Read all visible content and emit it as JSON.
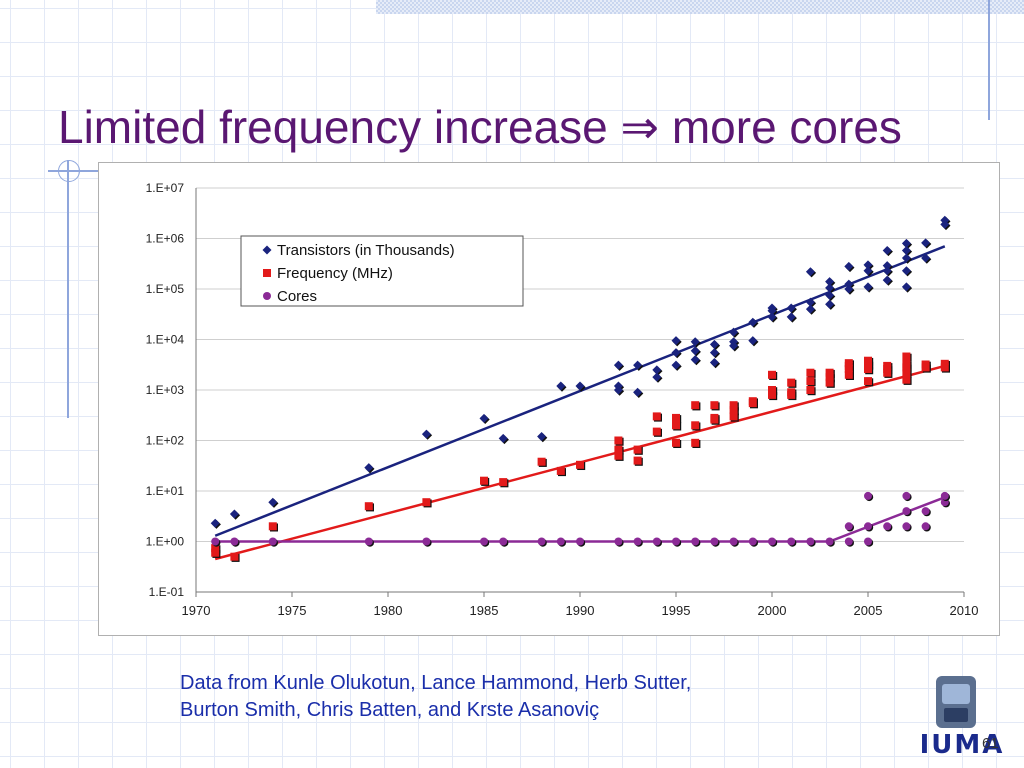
{
  "slide": {
    "title_text": "Limited frequency increase",
    "title_arrow": "⇒",
    "title_tail": "more cores",
    "credit_line1": "Data from Kunle Olukotun, Lance Hammond, Herb Sutter,",
    "credit_line2": "Burton Smith, Chris Batten, and Krste Asanoviç",
    "page_number": "61",
    "logo_text": "IUMA"
  },
  "colors": {
    "title": "#5a1772",
    "transistors": "#1a237e",
    "frequency": "#e21a1a",
    "cores": "#8b2a96",
    "credit": "#1a2eaa"
  },
  "chart_data": {
    "type": "scatter",
    "title": "",
    "xlabel": "",
    "ylabel": "",
    "y_scale": "log",
    "xlim": [
      1970,
      2010
    ],
    "ylim": [
      0.1,
      10000000
    ],
    "x_ticks": [
      "1970",
      "1975",
      "1980",
      "1985",
      "1990",
      "1995",
      "2000",
      "2005",
      "2010"
    ],
    "x_tick_values": [
      1970,
      1975,
      1980,
      1985,
      1990,
      1995,
      2000,
      2005,
      2010
    ],
    "y_ticks": [
      "1.E+07",
      "1.E+06",
      "1.E+05",
      "1.E+04",
      "1.E+03",
      "1.E+02",
      "1.E+01",
      "1.E+00",
      "1.E-01"
    ],
    "y_tick_values": [
      10000000,
      1000000,
      100000,
      10000,
      1000,
      100,
      10,
      1,
      0.1
    ],
    "grid": "horizontal",
    "legend_position": "top-left",
    "series": [
      {
        "name": "Transistors (in Thousands)",
        "marker": "diamond",
        "points": [
          [
            1971,
            2.3
          ],
          [
            1972,
            3.5
          ],
          [
            1974,
            6
          ],
          [
            1979,
            29
          ],
          [
            1982,
            134
          ],
          [
            1985,
            275
          ],
          [
            1986,
            110
          ],
          [
            1988,
            120
          ],
          [
            1989,
            1200
          ],
          [
            1990,
            1200
          ],
          [
            1992,
            3100
          ],
          [
            1992,
            1200
          ],
          [
            1992,
            1000
          ],
          [
            1993,
            3100
          ],
          [
            1993,
            900
          ],
          [
            1994,
            2500
          ],
          [
            1994,
            1800
          ],
          [
            1995,
            9500
          ],
          [
            1995,
            5500
          ],
          [
            1995,
            3100
          ],
          [
            1996,
            9000
          ],
          [
            1996,
            6000
          ],
          [
            1996,
            4000
          ],
          [
            1997,
            8000
          ],
          [
            1997,
            5500
          ],
          [
            1997,
            3500
          ],
          [
            1998,
            14000
          ],
          [
            1998,
            9000
          ],
          [
            1998,
            7500
          ],
          [
            1999,
            22000
          ],
          [
            1999,
            9500
          ],
          [
            2000,
            42000
          ],
          [
            2000,
            37000
          ],
          [
            2000,
            28000
          ],
          [
            2001,
            42000
          ],
          [
            2001,
            28000
          ],
          [
            2002,
            220000
          ],
          [
            2002,
            55000
          ],
          [
            2002,
            40000
          ],
          [
            2003,
            140000
          ],
          [
            2003,
            105000
          ],
          [
            2003,
            75000
          ],
          [
            2003,
            50000
          ],
          [
            2004,
            280000
          ],
          [
            2004,
            125000
          ],
          [
            2004,
            100000
          ],
          [
            2005,
            300000
          ],
          [
            2005,
            230000
          ],
          [
            2005,
            110000
          ],
          [
            2006,
            580000
          ],
          [
            2006,
            290000
          ],
          [
            2006,
            230000
          ],
          [
            2006,
            150000
          ],
          [
            2007,
            800000
          ],
          [
            2007,
            580000
          ],
          [
            2007,
            410000
          ],
          [
            2007,
            230000
          ],
          [
            2007,
            110000
          ],
          [
            2008,
            820000
          ],
          [
            2008,
            410000
          ],
          [
            2009,
            2300000
          ],
          [
            2009,
            1900000
          ]
        ],
        "trend": [
          [
            1971,
            1.3
          ],
          [
            2009,
            700000
          ]
        ]
      },
      {
        "name": "Frequency (MHz)",
        "marker": "square",
        "points": [
          [
            1971,
            0.74
          ],
          [
            1971,
            0.6
          ],
          [
            1972,
            0.5
          ],
          [
            1974,
            2
          ],
          [
            1979,
            5
          ],
          [
            1982,
            6
          ],
          [
            1985,
            16
          ],
          [
            1986,
            15
          ],
          [
            1988,
            38
          ],
          [
            1989,
            25
          ],
          [
            1990,
            33
          ],
          [
            1992,
            100
          ],
          [
            1992,
            66
          ],
          [
            1992,
            50
          ],
          [
            1993,
            66
          ],
          [
            1993,
            40
          ],
          [
            1994,
            300
          ],
          [
            1994,
            150
          ],
          [
            1995,
            280
          ],
          [
            1995,
            200
          ],
          [
            1995,
            90
          ],
          [
            1996,
            500
          ],
          [
            1996,
            200
          ],
          [
            1996,
            90
          ],
          [
            1997,
            500
          ],
          [
            1997,
            280
          ],
          [
            1997,
            260
          ],
          [
            1998,
            500
          ],
          [
            1998,
            400
          ],
          [
            1998,
            300
          ],
          [
            1999,
            600
          ],
          [
            1999,
            550
          ],
          [
            2000,
            2000
          ],
          [
            2000,
            1000
          ],
          [
            2000,
            800
          ],
          [
            2001,
            1400
          ],
          [
            2001,
            900
          ],
          [
            2001,
            800
          ],
          [
            2002,
            2200
          ],
          [
            2002,
            1500
          ],
          [
            2002,
            1000
          ],
          [
            2003,
            2200
          ],
          [
            2003,
            1800
          ],
          [
            2003,
            1400
          ],
          [
            2004,
            3400
          ],
          [
            2004,
            3000
          ],
          [
            2004,
            2600
          ],
          [
            2004,
            2000
          ],
          [
            2005,
            3800
          ],
          [
            2005,
            3200
          ],
          [
            2005,
            2600
          ],
          [
            2005,
            1500
          ],
          [
            2006,
            3000
          ],
          [
            2006,
            2600
          ],
          [
            2006,
            2200
          ],
          [
            2007,
            4600
          ],
          [
            2007,
            3200
          ],
          [
            2007,
            2800
          ],
          [
            2007,
            2200
          ],
          [
            2007,
            1600
          ],
          [
            2008,
            3200
          ],
          [
            2008,
            2800
          ],
          [
            2009,
            3300
          ],
          [
            2009,
            2800
          ]
        ],
        "trend": [
          [
            1971,
            0.45
          ],
          [
            2009,
            3000
          ]
        ]
      },
      {
        "name": "Cores",
        "marker": "circle",
        "points": [
          [
            1971,
            1
          ],
          [
            1972,
            1
          ],
          [
            1974,
            1
          ],
          [
            1979,
            1
          ],
          [
            1982,
            1
          ],
          [
            1985,
            1
          ],
          [
            1986,
            1
          ],
          [
            1988,
            1
          ],
          [
            1989,
            1
          ],
          [
            1990,
            1
          ],
          [
            1992,
            1
          ],
          [
            1993,
            1
          ],
          [
            1994,
            1
          ],
          [
            1995,
            1
          ],
          [
            1996,
            1
          ],
          [
            1997,
            1
          ],
          [
            1998,
            1
          ],
          [
            1999,
            1
          ],
          [
            2000,
            1
          ],
          [
            2001,
            1
          ],
          [
            2002,
            1
          ],
          [
            2003,
            1
          ],
          [
            2004,
            1
          ],
          [
            2004,
            2
          ],
          [
            2005,
            1
          ],
          [
            2005,
            2
          ],
          [
            2005,
            8
          ],
          [
            2006,
            2
          ],
          [
            2007,
            2
          ],
          [
            2007,
            4
          ],
          [
            2007,
            8
          ],
          [
            2008,
            2
          ],
          [
            2008,
            4
          ],
          [
            2009,
            6
          ],
          [
            2009,
            8
          ]
        ],
        "trend": [
          [
            1971,
            1
          ],
          [
            2003,
            1
          ],
          [
            2009,
            7.5
          ]
        ]
      }
    ]
  }
}
